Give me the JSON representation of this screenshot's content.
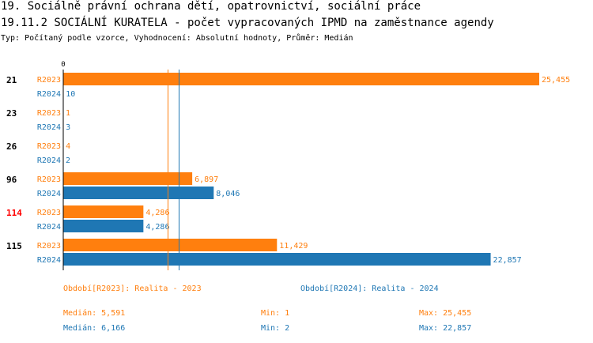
{
  "header": {
    "title_line1": "19. Sociálně právní ochrana dětí, opatrovnictví, sociální práce",
    "title_line2": "19.11.2 SOCIÁLNÍ KURATELA - počet vypracovaných IPMD na zaměstnance agendy",
    "subtitle": "Typ: Počítaný podle vzorce, Vyhodnocení: Absolutní hodnoty, Průměr: Medián"
  },
  "chart_data": {
    "type": "bar",
    "orientation": "horizontal",
    "axis_zero_label": "0",
    "categories": [
      "21",
      "23",
      "26",
      "96",
      "114",
      "115"
    ],
    "highlight_category": "114",
    "highlight_color": "#ff0000",
    "xlim": [
      0,
      25455
    ],
    "series": [
      {
        "name": "R2023",
        "color": "#ff7f0e",
        "values": [
          25455,
          1,
          4,
          6897,
          4286,
          11429
        ],
        "labels": [
          "25,455",
          "1",
          "4",
          "6,897",
          "4,286",
          "11,429"
        ],
        "median": 5591
      },
      {
        "name": "R2024",
        "color": "#1f77b4",
        "values": [
          10,
          3,
          2,
          8046,
          4286,
          22857
        ],
        "labels": [
          "10",
          "3",
          "2",
          "8,046",
          "4,286",
          "22,857"
        ],
        "median": 6166
      }
    ]
  },
  "footer": {
    "period_2023": "Období[R2023]: Realita - 2023",
    "period_2024": "Období[R2024]: Realita - 2024",
    "median_2023": "Medián: 5,591",
    "min_2023": "Min: 1",
    "max_2023": "Max: 25,455",
    "median_2024": "Medián: 6,166",
    "min_2024": "Min: 2",
    "max_2024": "Max: 22,857"
  }
}
